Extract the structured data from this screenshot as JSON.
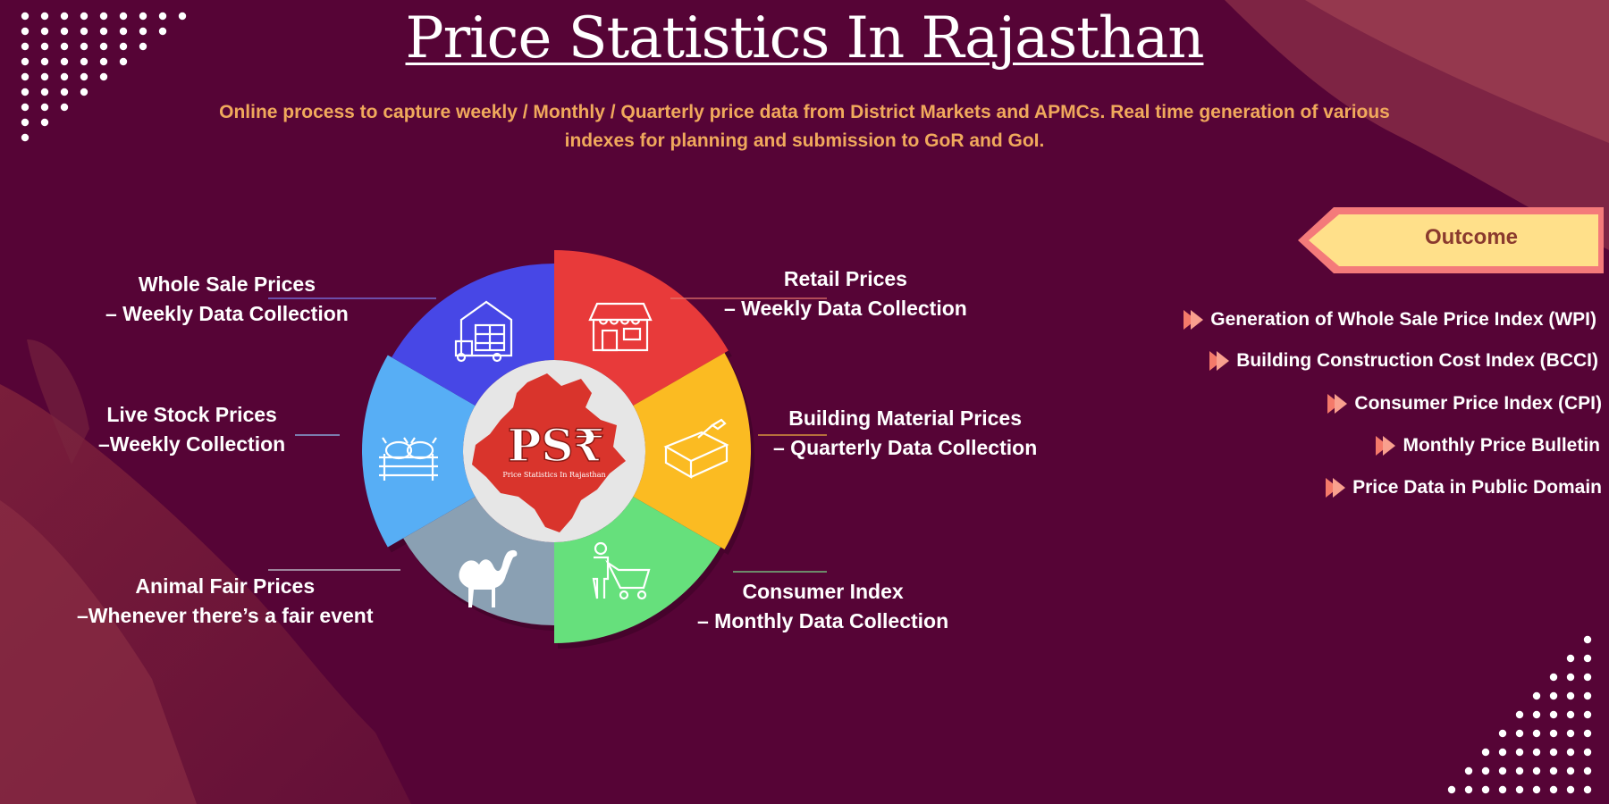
{
  "header": {
    "title": "Price Statistics In Rajasthan",
    "subtitle": "Online process to capture weekly / Monthly / Quarterly price data from District Markets and APMCs. Real time generation of various indexes for planning and submission to GoR and GoI."
  },
  "diagram": {
    "center_logo_text": "PS₹",
    "center_logo_caption": "Price Statistics In Rajasthan",
    "segments": [
      {
        "id": "retail",
        "line1": "Retail Prices",
        "line2": "– Weekly Data  Collection",
        "color": "#e83a3a",
        "icon": "shop-icon"
      },
      {
        "id": "building",
        "line1": "Building Material Prices",
        "line2": "– Quarterly Data  Collection",
        "color": "#fbbb22",
        "icon": "brick-trowel-icon"
      },
      {
        "id": "consumer",
        "line1": "Consumer Index",
        "line2": "– Monthly Data  Collection",
        "color": "#66e07c",
        "icon": "shopper-cart-icon"
      },
      {
        "id": "animal",
        "line1": "Animal Fair Prices",
        "line2": "–Whenever there’s a fair event",
        "color": "#8aa0b3",
        "icon": "camel-icon"
      },
      {
        "id": "livestock",
        "line1": "Live Stock Prices",
        "line2": "–Weekly Collection",
        "color": "#57aef5",
        "icon": "cattle-icon"
      },
      {
        "id": "wholesale",
        "line1": "Whole Sale Prices",
        "line2": "– Weekly Data Collection",
        "color": "#4747e6",
        "icon": "warehouse-truck-icon"
      }
    ]
  },
  "outcome": {
    "label": "Outcome",
    "items": [
      "Generation of Whole Sale Price Index (WPI)",
      "Building Construction Cost Index (BCCI)",
      "Consumer Price Index (CPI)",
      "Monthly Price Bulletin",
      "Price Data in Public Domain"
    ]
  },
  "colors": {
    "background": "#560436",
    "subtitle": "#f0a95c",
    "outcome_fill": "#ffe08a",
    "outcome_border": "#f47a7a",
    "arrow": "#f47a6a"
  }
}
